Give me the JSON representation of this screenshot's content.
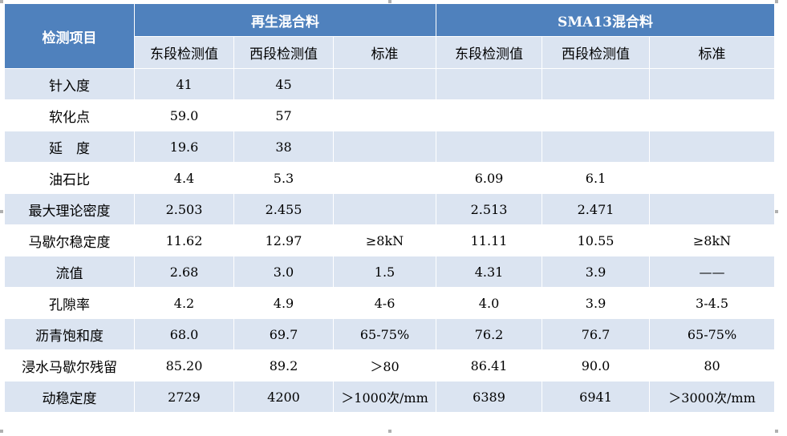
{
  "header": {
    "item_label": "检测项目",
    "group_recycled": "再生混合料",
    "group_sma": "SMA13混合料",
    "east": "东段检测值",
    "west": "西段检测值",
    "standard": "标准"
  },
  "rows": [
    {
      "item": "针入度",
      "r_east": "41",
      "r_west": "45",
      "r_std": "",
      "s_east": "",
      "s_west": "",
      "s_std": ""
    },
    {
      "item": "软化点",
      "r_east": "59.0",
      "r_west": "57",
      "r_std": "",
      "s_east": "",
      "s_west": "",
      "s_std": ""
    },
    {
      "item": "延　度",
      "r_east": "19.6",
      "r_west": "38",
      "r_std": "",
      "s_east": "",
      "s_west": "",
      "s_std": ""
    },
    {
      "item": "油石比",
      "r_east": "4.4",
      "r_west": "5.3",
      "r_std": "",
      "s_east": "6.09",
      "s_west": "6.1",
      "s_std": ""
    },
    {
      "item": "最大理论密度",
      "r_east": "2.503",
      "r_west": "2.455",
      "r_std": "",
      "s_east": "2.513",
      "s_west": "2.471",
      "s_std": ""
    },
    {
      "item": "马歇尔稳定度",
      "r_east": "11.62",
      "r_west": "12.97",
      "r_std": "≥8kN",
      "s_east": "11.11",
      "s_west": "10.55",
      "s_std": "≥8kN"
    },
    {
      "item": "流值",
      "r_east": "2.68",
      "r_west": "3.0",
      "r_std": "1.5",
      "s_east": "4.31",
      "s_west": "3.9",
      "s_std": "——"
    },
    {
      "item": "孔隙率",
      "r_east": "4.2",
      "r_west": "4.9",
      "r_std": "4-6",
      "s_east": "4.0",
      "s_west": "3.9",
      "s_std": "3-4.5"
    },
    {
      "item": "沥青饱和度",
      "r_east": "68.0",
      "r_west": "69.7",
      "r_std": "65-75%",
      "s_east": "76.2",
      "s_west": "76.7",
      "s_std": "65-75%"
    },
    {
      "item": "浸水马歇尔残留",
      "r_east": "85.20",
      "r_west": "89.2",
      "r_std": "＞80",
      "s_east": "86.41",
      "s_west": "90.0",
      "s_std": "80"
    },
    {
      "item": "动稳定度",
      "r_east": "2729",
      "r_west": "4200",
      "r_std": "＞1000次/mm",
      "s_east": "6389",
      "s_west": "6941",
      "s_std": "＞3000次/mm"
    }
  ],
  "colors": {
    "header_blue": "#4f81bd",
    "band_light": "#dbe4f1",
    "white": "#ffffff"
  }
}
